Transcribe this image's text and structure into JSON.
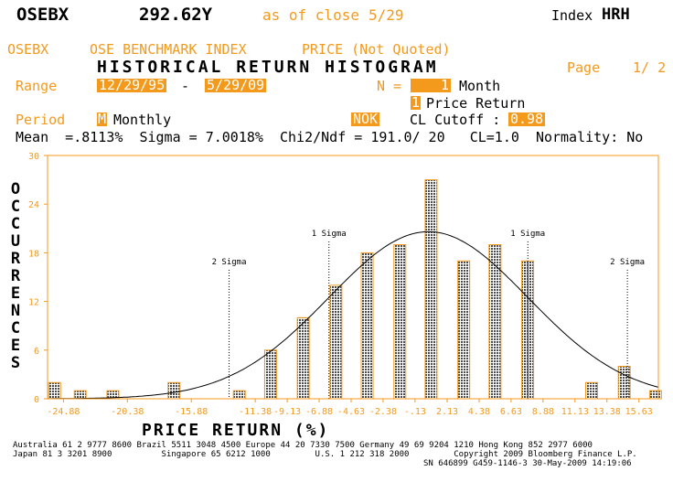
{
  "header": {
    "ticker": "OSEBX",
    "price": "292.62Y",
    "as_of_label": "as of close",
    "date": "5/29",
    "index_label": "Index",
    "function_code": "HRH"
  },
  "subheader": {
    "ticker": "OSEBX",
    "name": "OSE BENCHMARK INDEX",
    "price_label": "PRICE (Not Quoted)",
    "title": "HISTORICAL RETURN HISTOGRAM",
    "page_label": "Page",
    "page_value": "1/ 2"
  },
  "controls": {
    "range_label": "Range",
    "range_start": "12/29/95",
    "range_dash": "-",
    "range_end": "5/29/09",
    "n_label": "N =",
    "n_value": "1",
    "n_unit": "Month",
    "return_type_code": "1",
    "return_type_label": "Price Return",
    "period_label": "Period",
    "period_code": "M",
    "period_value": "Monthly",
    "currency": "NOK",
    "cutoff_label": "CL Cutoff :",
    "cutoff_value": "0.98"
  },
  "stats": {
    "line": "Mean  =.8113%  Sigma = 7.0018%  Chi2/Ndf = 191.0/ 20   CL=1.0  Normality: No"
  },
  "chart_data": {
    "type": "bar",
    "ylabel": "OCCURRENCES",
    "xlabel": "PRICE RETURN (%)",
    "ylim": [
      0,
      30
    ],
    "yticks": [
      "30",
      "24",
      "18",
      "12",
      "6",
      "0"
    ],
    "xlim": [
      -26,
      17
    ],
    "xticks": [
      -24.88,
      -20.38,
      -15.88,
      -11.38,
      -9.13,
      -6.88,
      -4.63,
      -2.38,
      -0.13,
      2.13,
      4.38,
      6.63,
      8.88,
      11.13,
      13.38,
      15.63
    ],
    "xtick_labels": [
      "-24.88",
      "-20.38",
      "-15.88",
      "-11.38",
      "-9.13",
      "-6.88",
      "-4.63",
      "-2.38",
      "-.13",
      "2.13",
      "4.38",
      "6.63",
      "8.88",
      "11.13",
      "13.38",
      "15.63"
    ],
    "bins": [
      {
        "x": -25.5,
        "y": 2
      },
      {
        "x": -23.7,
        "y": 1
      },
      {
        "x": -21.4,
        "y": 1
      },
      {
        "x": -17.1,
        "y": 2
      },
      {
        "x": -12.5,
        "y": 1
      },
      {
        "x": -10.3,
        "y": 6
      },
      {
        "x": -8.0,
        "y": 10
      },
      {
        "x": -5.7,
        "y": 14
      },
      {
        "x": -3.5,
        "y": 18
      },
      {
        "x": -1.2,
        "y": 19
      },
      {
        "x": 1.0,
        "y": 27
      },
      {
        "x": 3.3,
        "y": 17
      },
      {
        "x": 5.5,
        "y": 19
      },
      {
        "x": 7.8,
        "y": 17
      },
      {
        "x": 12.3,
        "y": 2
      },
      {
        "x": 14.6,
        "y": 4
      },
      {
        "x": 16.8,
        "y": 1
      }
    ],
    "sigma_lines": [
      {
        "label": "2 Sigma",
        "x": -13.22
      },
      {
        "label": "1 Sigma",
        "x": -6.19
      },
      {
        "label": "1 Sigma",
        "x": 7.81
      },
      {
        "label": "2 Sigma",
        "x": 14.82
      }
    ],
    "fit_curve": {
      "mean": 0.8113,
      "sigma": 7.0018,
      "peak": 20.6
    }
  },
  "footer": {
    "line1": "Australia 61 2 9777 8600 Brazil 5511 3048 4500 Europe 44 20 7330 7500 Germany 49 69 9204 1210 Hong Kong 852 2977 6000",
    "line2": "Japan 81 3 3201 8900          Singapore 65 6212 1000         U.S. 1 212 318 2000         Copyright 2009 Bloomberg Finance L.P.",
    "line3": "SN 646899 G459-1146-3 30-May-2009 14:19:06"
  },
  "colors": {
    "accent": "#f39a1d",
    "axis": "#f39a1d",
    "bar_fill": "#5a5a5a"
  }
}
